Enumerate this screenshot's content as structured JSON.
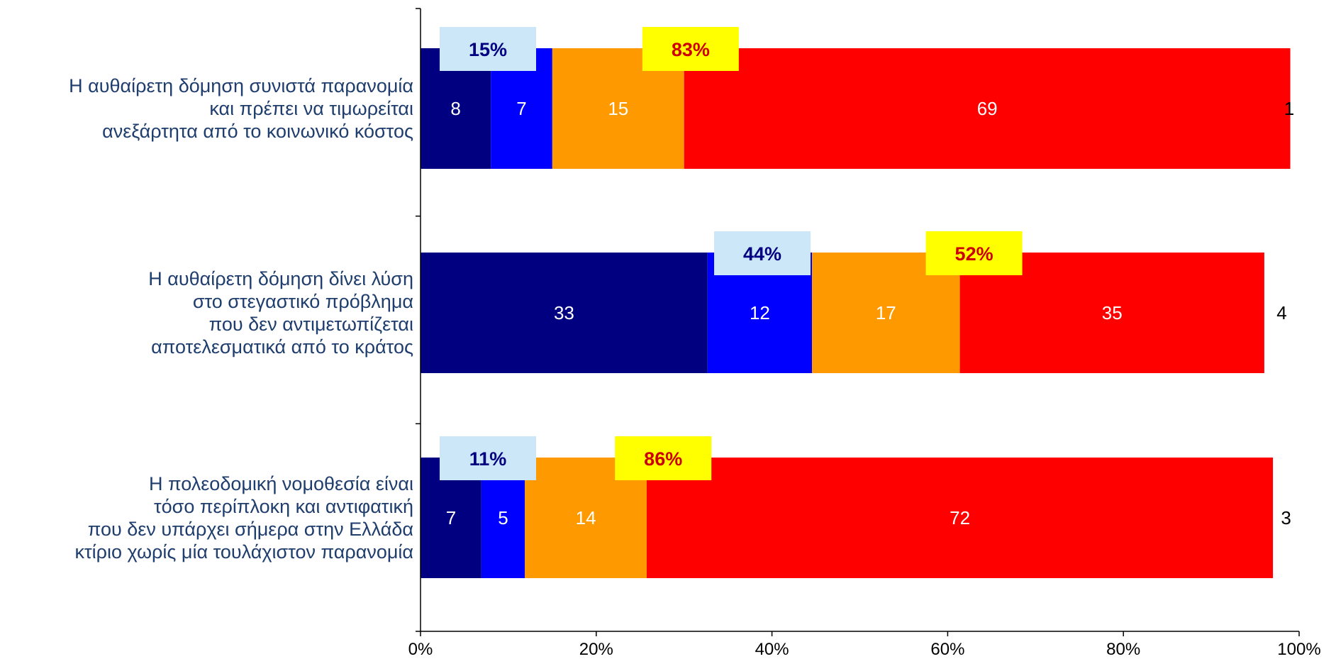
{
  "chart_data": {
    "type": "bar",
    "orientation": "horizontal",
    "stacked": true,
    "normalized_percent": true,
    "categories": [
      "Η αυθαίρετη δόμηση συνιστά παρανομία\nκαι πρέπει να τιμωρείται\nανεξάρτητα από το κοινωνικό κόστος",
      "Η αυθαίρετη δόμηση δίνει λύση\nστο στεγαστικό πρόβλημα\nπου δεν αντιμετωπίζεται\nαποτελεσματικά από το κράτος",
      "Η πολεοδομική νομοθεσία είναι\nτόσο περίπλοκη και αντιφατική\nπου δεν υπάρχει σήμερα στην Ελλάδα\nκτίριο χωρίς μία τουλάχιστον παρανομία"
    ],
    "series": [
      {
        "color": "#000080",
        "label_color": "#ffffff",
        "values": [
          8,
          33,
          7
        ]
      },
      {
        "color": "#0000ff",
        "label_color": "#ffffff",
        "values": [
          7,
          12,
          5
        ]
      },
      {
        "color": "#ff9900",
        "label_color": "#ffffff",
        "values": [
          15,
          17,
          14
        ]
      },
      {
        "color": "#ff0000",
        "label_color": "#ffffff",
        "values": [
          69,
          35,
          72
        ]
      },
      {
        "color": "#ffffff",
        "label_color": "#000000",
        "values": [
          1,
          4,
          3
        ]
      }
    ],
    "summary_labels": [
      {
        "left": "15%",
        "right": "83%"
      },
      {
        "left": "44%",
        "right": "52%"
      },
      {
        "left": "11%",
        "right": "86%"
      }
    ],
    "summary_style": {
      "left_box": "#cce8f8",
      "left_text": "#000080",
      "right_box": "#ffff00",
      "right_text": "#cc0000"
    },
    "x_ticks": [
      "0%",
      "20%",
      "40%",
      "60%",
      "80%",
      "100%"
    ],
    "xlim": [
      0,
      100
    ],
    "grid": false,
    "legend": "none",
    "title": "",
    "xlabel": "",
    "ylabel": ""
  }
}
